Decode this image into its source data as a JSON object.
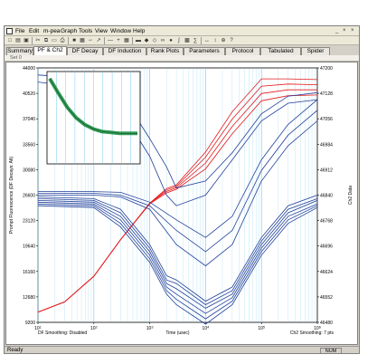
{
  "menubar": {
    "items": [
      "File",
      "Edit",
      "m-pea",
      "Graph",
      "Tools",
      "View",
      "Window",
      "Help"
    ],
    "window_controls": [
      "_",
      "×",
      "×"
    ]
  },
  "toolbar": {
    "icons": [
      "new-icon",
      "open-icon",
      "save-icon",
      "cut-icon",
      "copy-icon",
      "paste-icon",
      "print-icon",
      "chart-icon",
      "table-icon",
      "curve-icon",
      "arrow-icon",
      "minus-icon",
      "plus-icon",
      "grid-icon",
      "bar-icon",
      "pin-icon",
      "select-icon",
      "link-icon",
      "drop-icon",
      "log-icon",
      "color-icon",
      "stats-icon",
      "x-icon",
      "y-icon",
      "zoom-icon",
      "info-icon"
    ]
  },
  "tabs": [
    "Summary",
    "PF & Ch2",
    "DF Decay",
    "DF Induction",
    "Rank Plots",
    "Parameters",
    "Protocol",
    "Tabulated",
    "Spider"
  ],
  "active_tab": "PF & Ch2",
  "set_label": "Set 0",
  "status": {
    "left": "Ready",
    "right": "NUM"
  },
  "colors": {
    "pf_curves": "#e41a1c",
    "blue_curves": "#1f3f99",
    "inset_curves": "#138a3a",
    "gridlines": "#78c8ea"
  },
  "chart_data": {
    "type": "line",
    "x_scale": "log",
    "xlim": [
      10,
      1000000
    ],
    "x_tick_labels": [
      "10^1",
      "10^2",
      "10^3",
      "10^4",
      "10^5",
      "10^6"
    ],
    "xlabel": "Time (usec)",
    "ylabel_left": "Prompt Fluorescence (DF Decays: Alt)",
    "ylabel_right": "Ch2 Data",
    "y_left_ticks": [
      "44000",
      "40520",
      "37040",
      "33560",
      "30080",
      "26600",
      "23120",
      "19640",
      "16160",
      "12680",
      "9200"
    ],
    "y_left_lim": [
      9200,
      44000
    ],
    "y_right_ticks": [
      "47200",
      "47128",
      "47056",
      "46984",
      "46912",
      "46840",
      "46768",
      "46696",
      "46624",
      "46552",
      "46480"
    ],
    "y_right_lim": [
      46480,
      47200
    ],
    "bottom_left_note": "DF Smoothing: Disabled",
    "bottom_right_note": "Ch2 Smoothing: 7 pts",
    "series": [
      {
        "x": [
          10,
          30,
          100,
          300,
          1000,
          2000,
          3000,
          10000,
          30000,
          100000,
          300000,
          1000000
        ],
        "y": [
          10600,
          12000,
          15500,
          20500,
          25500,
          27500,
          28000,
          32500,
          38000,
          42500,
          42500,
          42400
        ]
      },
      {
        "x": [
          10,
          30,
          100,
          300,
          1000,
          2000,
          3000,
          10000,
          30000,
          100000,
          300000,
          1000000
        ],
        "y": [
          10600,
          12000,
          15500,
          20500,
          25500,
          27300,
          27800,
          31800,
          37000,
          41500,
          41800,
          41700
        ]
      },
      {
        "x": [
          10,
          30,
          100,
          300,
          1000,
          2000,
          3000,
          10000,
          30000,
          100000,
          300000,
          1000000
        ],
        "y": [
          10600,
          12000,
          15500,
          20500,
          25500,
          27100,
          27600,
          31000,
          36000,
          40500,
          41000,
          41000
        ]
      },
      {
        "x": [
          10,
          30,
          100,
          300,
          1000,
          2000,
          3000,
          10000,
          30000,
          100000,
          300000,
          1000000
        ],
        "y": [
          10600,
          12000,
          15500,
          20500,
          25400,
          26900,
          27400,
          30200,
          35000,
          39500,
          40200,
          40300
        ]
      },
      {
        "x": [
          10,
          100,
          300,
          1000,
          2000,
          3000,
          10000,
          30000,
          100000,
          300000,
          1000000
        ],
        "y": [
          46835,
          46830,
          46800,
          46700,
          46612,
          46600,
          46540,
          46580,
          46720,
          46810,
          46840
        ]
      },
      {
        "x": [
          10,
          100,
          300,
          1000,
          2000,
          3000,
          10000,
          30000,
          100000,
          300000,
          1000000
        ],
        "y": [
          46830,
          46825,
          46790,
          46690,
          46600,
          46590,
          46530,
          46570,
          46710,
          46800,
          46830
        ]
      },
      {
        "x": [
          10,
          100,
          300,
          1000,
          2000,
          3000,
          10000,
          30000,
          100000,
          300000,
          1000000
        ],
        "y": [
          46825,
          46820,
          46780,
          46680,
          46590,
          46575,
          46520,
          46560,
          46700,
          46790,
          46825
        ]
      },
      {
        "x": [
          10,
          100,
          300,
          1000,
          2000,
          3000,
          10000,
          30000,
          100000,
          300000,
          1000000
        ],
        "y": [
          46820,
          46815,
          46770,
          46670,
          46580,
          46560,
          46505,
          46550,
          46690,
          46780,
          46815
        ]
      },
      {
        "x": [
          10,
          100,
          300,
          1000,
          2000,
          3000,
          10000,
          30000,
          100000,
          300000,
          1000000
        ],
        "y": [
          46815,
          46810,
          46760,
          46660,
          46570,
          46545,
          46490,
          46540,
          46680,
          46770,
          46810
        ]
      },
      {
        "x": [
          10,
          100,
          300,
          1000,
          2000,
          3000,
          10000,
          30000,
          100000,
          300000,
          1000000
        ],
        "y": [
          46810,
          46805,
          46750,
          46650,
          46560,
          46530,
          46475,
          46530,
          46670,
          46760,
          46805
        ]
      },
      {
        "x": [
          10,
          100,
          300,
          1000,
          3000,
          10000,
          30000,
          100000,
          300000,
          1000000
        ],
        "y": [
          46840,
          46840,
          46835,
          46800,
          46700,
          46640,
          46700,
          46880,
          46980,
          47050
        ]
      },
      {
        "x": [
          10,
          100,
          300,
          1000,
          3000,
          10000,
          30000,
          100000,
          300000,
          1000000
        ],
        "y": [
          46845,
          46845,
          46840,
          46810,
          46740,
          46680,
          46740,
          46910,
          47010,
          47080
        ]
      },
      {
        "x": [
          10,
          100,
          300,
          1000,
          3000,
          10000,
          30000,
          100000,
          300000,
          1000000
        ],
        "y": [
          46850,
          46850,
          46848,
          46820,
          46770,
          46720,
          46780,
          46940,
          47040,
          47110
        ]
      },
      {
        "x": [
          10,
          100,
          300,
          1000,
          2000,
          3000,
          10000,
          30000,
          100000,
          300000,
          1000000
        ],
        "y": [
          47180,
          47170,
          47130,
          47000,
          46920,
          46860,
          46880,
          46960,
          47070,
          47120,
          47130
        ]
      },
      {
        "x": [
          10,
          100,
          300,
          1000,
          2000,
          3000,
          10000,
          30000,
          100000,
          300000,
          1000000
        ],
        "y": [
          47160,
          47140,
          47080,
          46950,
          46840,
          46810,
          46840,
          46940,
          47050,
          47100,
          47110
        ]
      }
    ],
    "inset": {
      "type": "line",
      "x": [
        0,
        10,
        20,
        30,
        40,
        50,
        60,
        70,
        80,
        90,
        100
      ],
      "y": [
        95,
        78,
        62,
        50,
        42,
        37,
        34,
        33,
        32,
        32,
        32
      ],
      "ylim": [
        0,
        100
      ]
    }
  }
}
